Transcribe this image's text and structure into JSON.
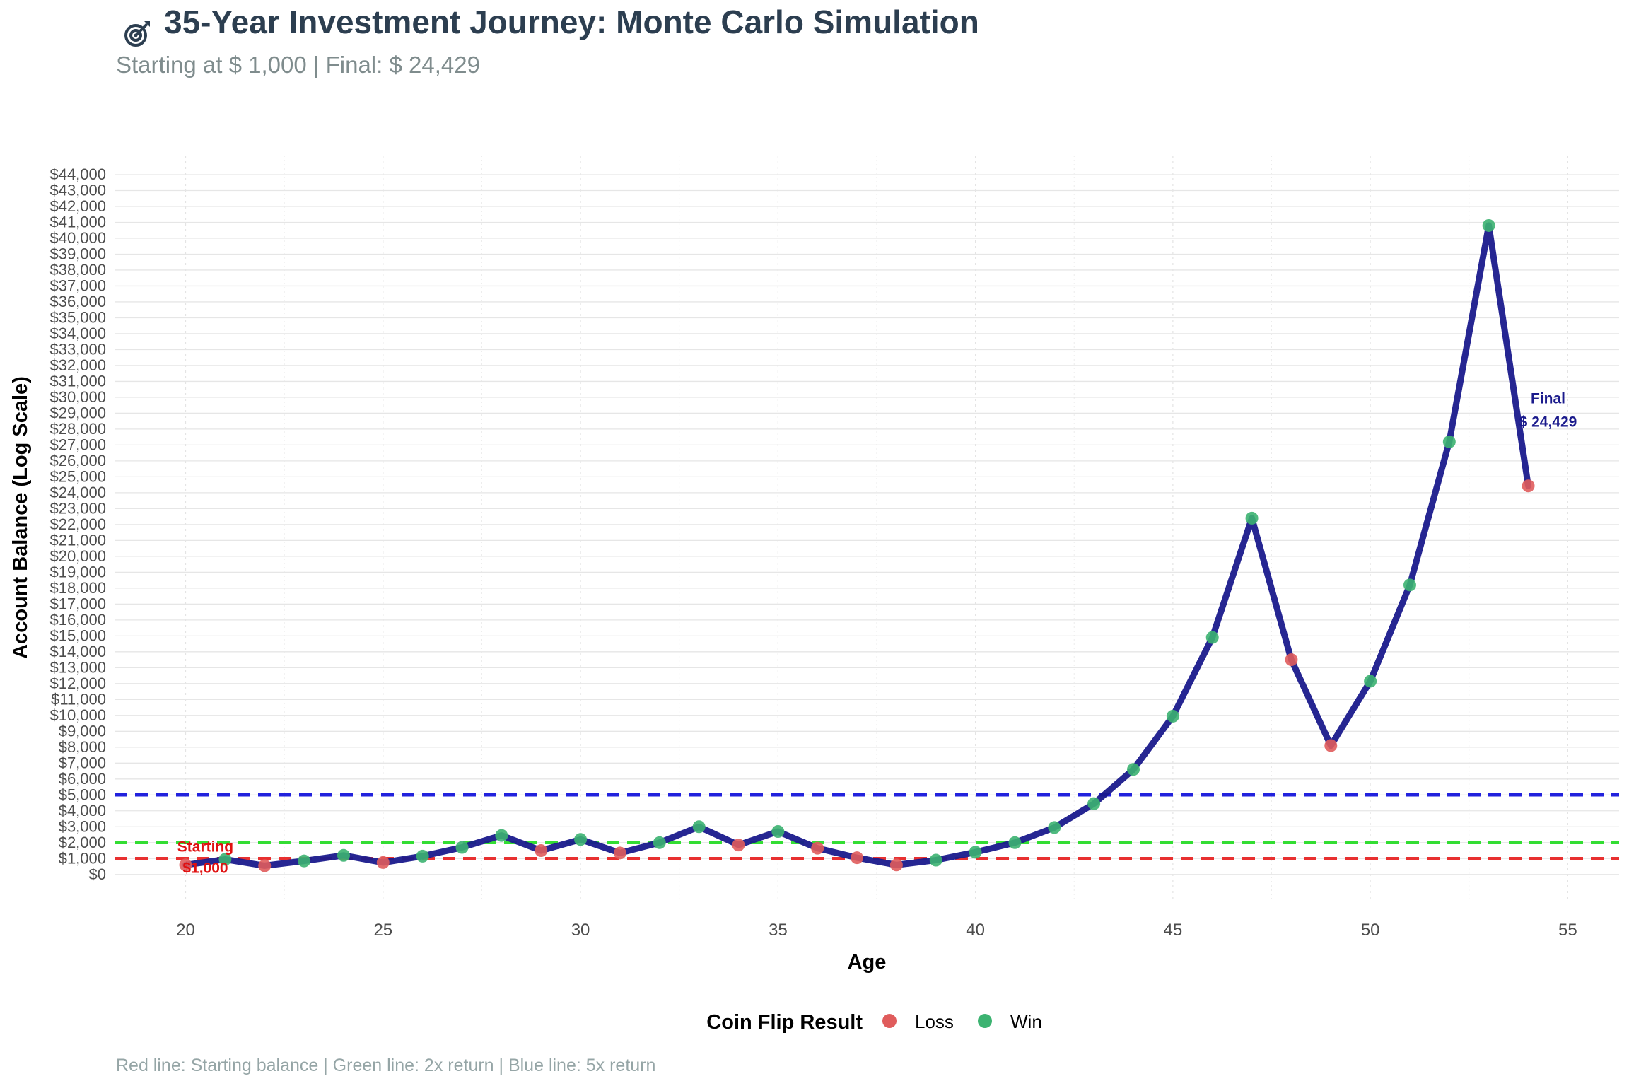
{
  "header": {
    "title": "35-Year Investment Journey: Monte Carlo Simulation",
    "title_icon": "dart-target-icon",
    "subtitle": "Starting at $ 1,000 | Final: $ 24,429"
  },
  "caption": "Red line: Starting balance | Green line: 2x return | Blue line: 5x return",
  "colors": {
    "line": "#1a1a8c",
    "loss": "#e05c5c",
    "win": "#3cb371",
    "start_ref": "#e83030",
    "double_ref": "#33dd33",
    "five_ref": "#2222dd",
    "final_annot": "#1a1a8c",
    "start_annot": "#e01010"
  },
  "chart_data": {
    "type": "line",
    "title": "35-Year Investment Journey: Monte Carlo Simulation",
    "subtitle": "Starting at $ 1,000 | Final: $ 24,429",
    "xlabel": "Age",
    "ylabel": "Account Balance (Log Scale)",
    "xlim": [
      18.2,
      56.3
    ],
    "ylim": [
      -1700,
      45200
    ],
    "x_ticks": [
      20,
      25,
      30,
      35,
      40,
      45,
      50,
      55
    ],
    "x_tick_labels": [
      "20",
      "25",
      "30",
      "35",
      "40",
      "45",
      "50",
      "55"
    ],
    "y_ticks": [
      0,
      1000,
      2000,
      3000,
      4000,
      5000,
      6000,
      7000,
      8000,
      9000,
      10000,
      11000,
      12000,
      13000,
      14000,
      15000,
      16000,
      17000,
      18000,
      19000,
      20000,
      21000,
      22000,
      23000,
      24000,
      25000,
      26000,
      27000,
      28000,
      29000,
      30000,
      31000,
      32000,
      33000,
      34000,
      35000,
      36000,
      37000,
      38000,
      39000,
      40000,
      41000,
      42000,
      43000,
      44000
    ],
    "y_tick_labels": [
      "$0",
      "$1,000",
      "$2,000",
      "$3,000",
      "$4,000",
      "$5,000",
      "$6,000",
      "$7,000",
      "$8,000",
      "$9,000",
      "$10,000",
      "$11,000",
      "$12,000",
      "$13,000",
      "$14,000",
      "$15,000",
      "$16,000",
      "$17,000",
      "$18,000",
      "$19,000",
      "$20,000",
      "$21,000",
      "$22,000",
      "$23,000",
      "$24,000",
      "$25,000",
      "$26,000",
      "$27,000",
      "$28,000",
      "$29,000",
      "$30,000",
      "$31,000",
      "$32,000",
      "$33,000",
      "$34,000",
      "$35,000",
      "$36,000",
      "$37,000",
      "$38,000",
      "$39,000",
      "$40,000",
      "$41,000",
      "$42,000",
      "$43,000",
      "$44,000"
    ],
    "grid": true,
    "legend": {
      "title": "Coin Flip Result",
      "position": "bottom",
      "entries": [
        {
          "label": "Loss",
          "color": "#e05c5c"
        },
        {
          "label": "Win",
          "color": "#3cb371"
        }
      ]
    },
    "series": [
      {
        "x": [
          20,
          21,
          22,
          23,
          24,
          25,
          26,
          27,
          28,
          29,
          30,
          31,
          32,
          33,
          34,
          35,
          36,
          37,
          38,
          39,
          40,
          41,
          42,
          43,
          44,
          45,
          46,
          47,
          48,
          49,
          50,
          51,
          52,
          53,
          54
        ],
        "y": [
          600,
          950,
          550,
          850,
          1200,
          750,
          1150,
          1700,
          2450,
          1500,
          2200,
          1350,
          2000,
          3000,
          1850,
          2700,
          1650,
          1050,
          600,
          900,
          1400,
          2000,
          2950,
          4450,
          6600,
          9950,
          14900,
          22400,
          13500,
          8100,
          12150,
          18200,
          27200,
          40800,
          24429
        ],
        "result": [
          "Loss",
          "Win",
          "Loss",
          "Win",
          "Win",
          "Loss",
          "Win",
          "Win",
          "Win",
          "Loss",
          "Win",
          "Loss",
          "Win",
          "Win",
          "Loss",
          "Win",
          "Loss",
          "Loss",
          "Loss",
          "Win",
          "Win",
          "Win",
          "Win",
          "Win",
          "Win",
          "Win",
          "Win",
          "Win",
          "Loss",
          "Loss",
          "Win",
          "Win",
          "Win",
          "Win",
          "Loss"
        ]
      }
    ],
    "reference_lines": [
      {
        "y": 1000,
        "color": "#e83030",
        "style": "dashed"
      },
      {
        "y": 2000,
        "color": "#33dd33",
        "style": "dashed"
      },
      {
        "y": 5000,
        "color": "#2222dd",
        "style": "dashed"
      }
    ],
    "annotations": [
      {
        "text": [
          "Starting",
          "$1,000"
        ],
        "x": 20.5,
        "y": 1000,
        "color": "#e01010"
      },
      {
        "text": [
          "Final",
          "$ 24,429"
        ],
        "x": 54.5,
        "y": 29000,
        "color": "#1a1a8c"
      }
    ]
  }
}
